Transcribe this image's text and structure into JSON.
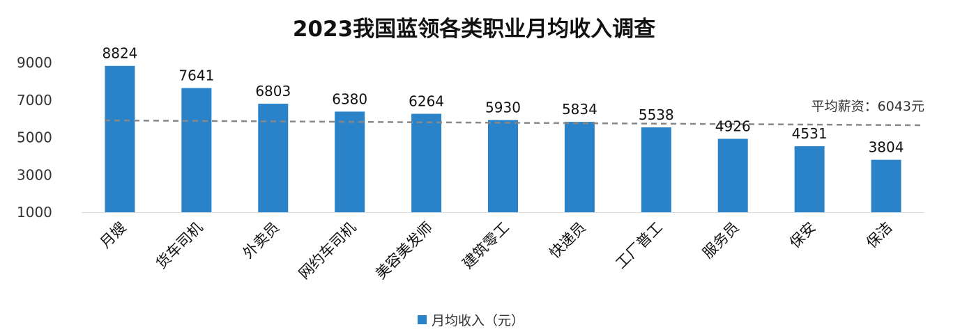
{
  "chart_data": {
    "type": "bar",
    "title": "2023我国蓝领各类职业月均收入调查",
    "categories": [
      "月嫂",
      "货车司机",
      "外卖员",
      "网约车司机",
      "美容美发师",
      "建筑零工",
      "快递员",
      "工厂普工",
      "服务员",
      "保安",
      "保洁"
    ],
    "series": [
      {
        "name": "月均收入（元）",
        "values": [
          8824,
          7641,
          6803,
          6380,
          6264,
          5930,
          5834,
          5538,
          4926,
          4531,
          3804
        ],
        "color": "#2a83c9"
      }
    ],
    "y_ticks": [
      "9000",
      "7000",
      "5000",
      "3000",
      "1000"
    ],
    "ylim": [
      1000,
      9000
    ],
    "xlabel": "",
    "ylabel": "",
    "grid": false,
    "legend": "bottom",
    "average_line": {
      "label": "平均薪资：6043元",
      "value": 6043,
      "style": "dashed",
      "color": "#888888"
    }
  }
}
